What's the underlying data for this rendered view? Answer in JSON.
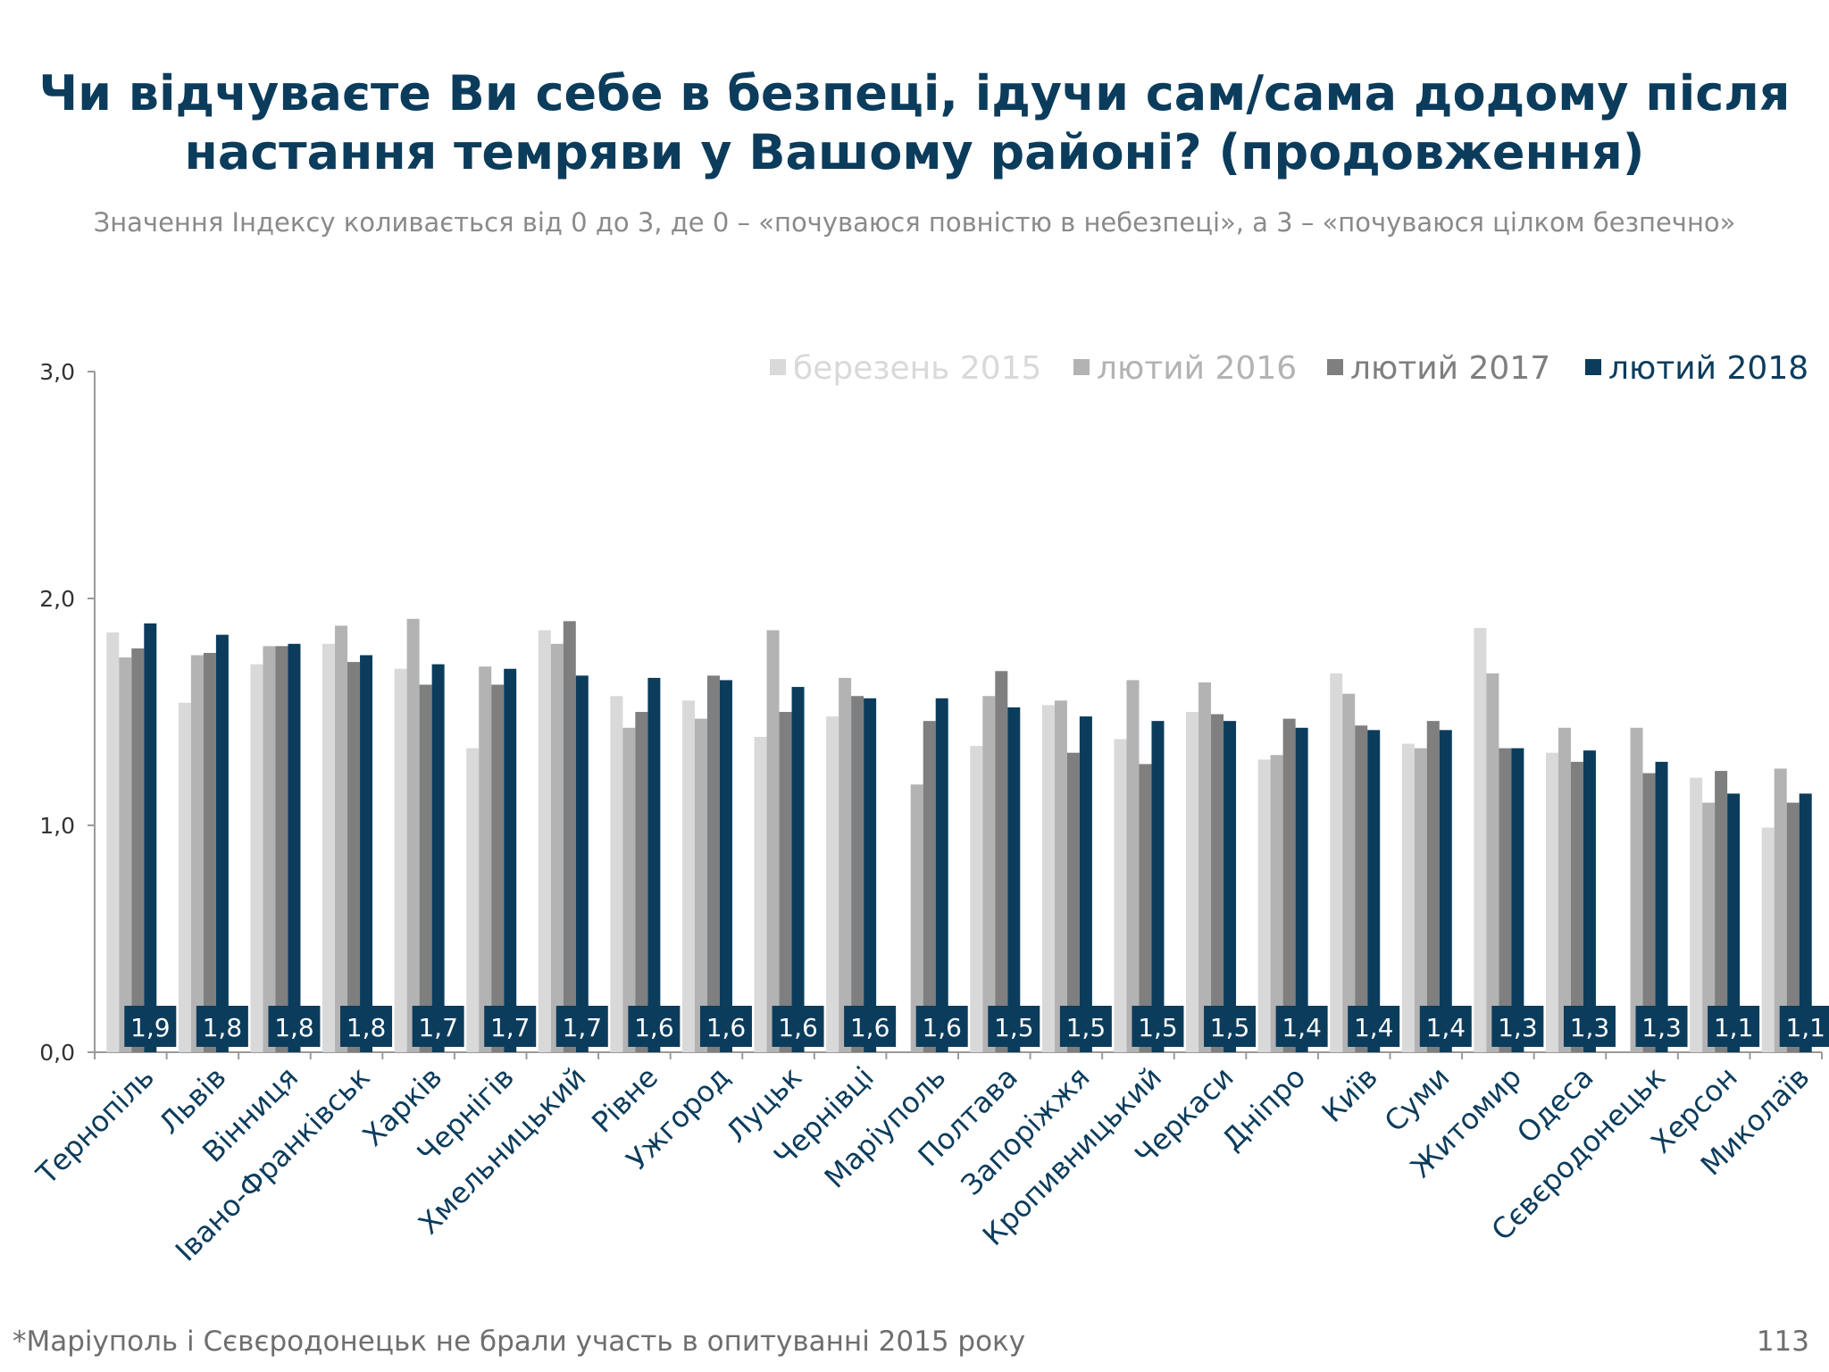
{
  "slide": {
    "title_line1": "Чи відчуваєте Ви себе в безпеці, ідучи сам/сама додому після",
    "title_line2": "настання темряви у Вашому районі? (продовження)",
    "subtitle": "Значення Індексу коливається від 0 до 3, де 0 – «почуваюся повністю в небезпеці», а 3 – «почуваюся цілком безпечно»",
    "footnote": "*Маріуполь і Сєвєродонецьк не брали участь в опитуванні 2015 року",
    "page_number": "113"
  },
  "chart_data": {
    "type": "bar",
    "ylim": [
      0,
      3
    ],
    "yticks": [
      "0,0",
      "1,0",
      "2,0",
      "3,0"
    ],
    "ytick_values": [
      0,
      1,
      2,
      3
    ],
    "grid": false,
    "legend_position": "top-right",
    "categories": [
      "Тернопіль",
      "Львів",
      "Вінниця",
      "Івано-Франківськ",
      "Харків",
      "Чернігів",
      "Хмельницький",
      "Рівне",
      "Ужгород",
      "Луцьк",
      "Чернівці",
      "Маріуполь",
      "Полтава",
      "Запоріжжя",
      "Кропивницький",
      "Черкаси",
      "Дніпро",
      "Київ",
      "Суми",
      "Житомир",
      "Одеса",
      "Сєвєродонецьк",
      "Херсон",
      "Миколаїв"
    ],
    "series": [
      {
        "name": "березень 2015",
        "color": "#d9d9d9",
        "values": [
          1.85,
          1.54,
          1.71,
          1.8,
          1.69,
          1.34,
          1.86,
          1.57,
          1.55,
          1.39,
          1.48,
          null,
          1.35,
          1.53,
          1.38,
          1.5,
          1.29,
          1.67,
          1.36,
          1.87,
          1.32,
          null,
          1.21,
          0.99
        ]
      },
      {
        "name": "лютий 2016",
        "color": "#b3b3b3",
        "values": [
          1.74,
          1.75,
          1.79,
          1.88,
          1.91,
          1.7,
          1.8,
          1.43,
          1.47,
          1.86,
          1.65,
          1.18,
          1.57,
          1.55,
          1.64,
          1.63,
          1.31,
          1.58,
          1.34,
          1.67,
          1.43,
          1.43,
          1.1,
          1.25
        ]
      },
      {
        "name": "лютий 2017",
        "color": "#7f7f7f",
        "values": [
          1.78,
          1.76,
          1.79,
          1.72,
          1.62,
          1.62,
          1.9,
          1.5,
          1.66,
          1.5,
          1.57,
          1.46,
          1.68,
          1.32,
          1.27,
          1.49,
          1.47,
          1.44,
          1.46,
          1.34,
          1.28,
          1.23,
          1.24,
          1.1
        ]
      },
      {
        "name": "лютий 2018",
        "color": "#0c3c5c",
        "values": [
          1.89,
          1.84,
          1.8,
          1.75,
          1.71,
          1.69,
          1.66,
          1.65,
          1.64,
          1.61,
          1.56,
          1.56,
          1.52,
          1.48,
          1.46,
          1.46,
          1.43,
          1.42,
          1.42,
          1.34,
          1.33,
          1.28,
          1.14,
          1.14
        ]
      }
    ],
    "data_labels": [
      "1,9",
      "1,8",
      "1,8",
      "1,8",
      "1,7",
      "1,7",
      "1,7",
      "1,6",
      "1,6",
      "1,6",
      "1,6",
      "1,6",
      "1,5",
      "1,5",
      "1,5",
      "1,5",
      "1,4",
      "1,4",
      "1,4",
      "1,3",
      "1,3",
      "1,3",
      "1,1",
      "1,1"
    ]
  }
}
